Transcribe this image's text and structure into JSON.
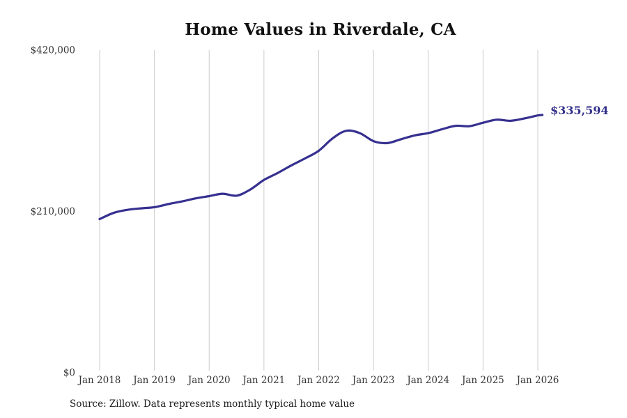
{
  "page": {
    "title": "Home Values in Riverdale, CA",
    "end_label": "$335,594",
    "source_note": "Source: Zillow. Data represents monthly typical home value"
  },
  "colors": {
    "background": "#ffffff",
    "title": "#111111",
    "line": "#363090",
    "end_label": "#32308b",
    "grid": "#cccccc",
    "tick_text": "#333333"
  },
  "chart_data": {
    "type": "line",
    "title": "Home Values in Riverdale, CA",
    "xlabel": "",
    "ylabel": "",
    "y_range": [
      0,
      420000
    ],
    "grid": {
      "vertical": true,
      "horizontal": false
    },
    "legend": "none",
    "x_tick_labels": [
      "Jan 2018",
      "Jan 2019",
      "Jan 2020",
      "Jan 2021",
      "Jan 2022",
      "Jan 2023",
      "Jan 2024",
      "Jan 2025",
      "Jan 2026"
    ],
    "y_ticks": [
      {
        "label": "$0",
        "value": 0
      },
      {
        "label": "$210,000",
        "value": 210000
      },
      {
        "label": "$420,000",
        "value": 420000
      }
    ],
    "series": [
      {
        "name": "Monthly typical home value",
        "color": "#363090",
        "points": [
          [
            "2018-01",
            200000
          ],
          [
            "2018-04",
            208000
          ],
          [
            "2018-07",
            212000
          ],
          [
            "2018-10",
            214000
          ],
          [
            "2019-01",
            215500
          ],
          [
            "2019-04",
            219500
          ],
          [
            "2019-07",
            223000
          ],
          [
            "2019-10",
            227000
          ],
          [
            "2020-01",
            230000
          ],
          [
            "2020-04",
            233000
          ],
          [
            "2020-07",
            230500
          ],
          [
            "2020-10",
            238500
          ],
          [
            "2021-01",
            251000
          ],
          [
            "2021-04",
            260000
          ],
          [
            "2021-07",
            270000
          ],
          [
            "2021-10",
            279000
          ],
          [
            "2022-01",
            289000
          ],
          [
            "2022-04",
            305000
          ],
          [
            "2022-07",
            315000
          ],
          [
            "2022-10",
            312000
          ],
          [
            "2023-01",
            301500
          ],
          [
            "2023-04",
            299000
          ],
          [
            "2023-07",
            304000
          ],
          [
            "2023-10",
            309000
          ],
          [
            "2024-01",
            312000
          ],
          [
            "2024-04",
            317000
          ],
          [
            "2024-07",
            321500
          ],
          [
            "2024-10",
            321000
          ],
          [
            "2025-01",
            325500
          ],
          [
            "2025-04",
            329500
          ],
          [
            "2025-07",
            328000
          ],
          [
            "2025-10",
            331000
          ],
          [
            "2026-01",
            335000
          ],
          [
            "2026-02",
            335594
          ]
        ]
      }
    ],
    "annotation": {
      "text": "$335,594",
      "attached_to": "last-point"
    },
    "source_note": "Source: Zillow. Data represents monthly typical home value"
  }
}
